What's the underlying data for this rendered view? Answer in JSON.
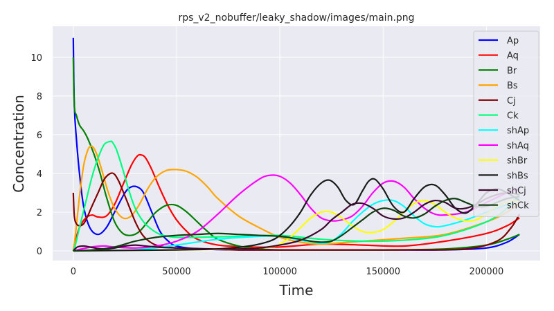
{
  "chart_data": {
    "type": "line",
    "title": "rps_v2_nobuffer/leaky_shadow/images/main.png",
    "xlabel": "Time",
    "ylabel": "Concentration",
    "xlim": [
      -10000,
      226000
    ],
    "ylim": [
      -0.5,
      11.6
    ],
    "x_ticks": [
      0,
      50000,
      100000,
      150000,
      200000
    ],
    "y_ticks": [
      0,
      2,
      4,
      6,
      8,
      10
    ],
    "grid": true,
    "legend": "top-right",
    "series": [
      {
        "name": "Ap",
        "color": "#0000ff",
        "x": [
          0,
          500,
          1500,
          3000,
          5000,
          8000,
          12000,
          16000,
          20000,
          25000,
          28000,
          31000,
          34000,
          38000,
          42000,
          46000,
          50000,
          60000,
          80000,
          100000,
          120000,
          150000,
          180000,
          200000,
          210000,
          216000
        ],
        "y": [
          11.0,
          7.5,
          5.8,
          4.0,
          2.3,
          1.2,
          0.85,
          1.2,
          2.0,
          3.0,
          3.3,
          3.3,
          3.0,
          2.0,
          1.0,
          0.5,
          0.25,
          0.1,
          0.05,
          0.05,
          0.05,
          0.05,
          0.05,
          0.15,
          0.45,
          0.85
        ]
      },
      {
        "name": "Aq",
        "color": "#ff0000",
        "x": [
          0,
          1000,
          3000,
          6000,
          9000,
          12000,
          16000,
          20000,
          24000,
          28000,
          31000,
          33000,
          35000,
          38000,
          42000,
          46000,
          50000,
          55000,
          60000,
          70000,
          85000,
          100000,
          120000,
          140000,
          160000,
          180000,
          200000,
          210000,
          216000
        ],
        "y": [
          0.0,
          0.5,
          1.2,
          1.7,
          1.85,
          1.75,
          1.8,
          2.4,
          3.4,
          4.4,
          4.9,
          4.95,
          4.8,
          4.2,
          3.2,
          2.3,
          1.6,
          1.0,
          0.6,
          0.3,
          0.2,
          0.2,
          0.35,
          0.3,
          0.25,
          0.5,
          0.9,
          1.3,
          1.7
        ]
      },
      {
        "name": "Br",
        "color": "#008000",
        "x": [
          0,
          500,
          1500,
          3000,
          5000,
          7000,
          10000,
          13000,
          16000,
          20000,
          24000,
          28000,
          32000,
          36000,
          40000,
          45000,
          50000,
          55000,
          60000,
          65000,
          70000,
          80000,
          90000,
          100000,
          120000,
          150000,
          180000,
          200000,
          210000,
          216000
        ],
        "y": [
          10.0,
          7.5,
          7.0,
          6.5,
          6.2,
          5.8,
          5.0,
          4.0,
          2.8,
          1.5,
          0.9,
          0.8,
          1.0,
          1.5,
          2.0,
          2.35,
          2.35,
          2.0,
          1.5,
          1.0,
          0.6,
          0.25,
          0.1,
          0.05,
          0.05,
          0.05,
          0.1,
          0.3,
          0.6,
          0.85
        ]
      },
      {
        "name": "Bs",
        "color": "#ffa500",
        "x": [
          0,
          1000,
          3000,
          5000,
          7000,
          8500,
          10000,
          12000,
          14000,
          17000,
          20000,
          24000,
          28000,
          32000,
          36000,
          40000,
          45000,
          50000,
          55000,
          60000,
          65000,
          70000,
          80000,
          90000,
          100000,
          110000,
          120000,
          140000,
          160000,
          180000,
          200000,
          210000,
          216000
        ],
        "y": [
          0.0,
          0.8,
          2.8,
          4.4,
          5.2,
          5.4,
          5.3,
          4.8,
          4.1,
          3.0,
          2.2,
          1.7,
          1.8,
          2.4,
          3.2,
          3.8,
          4.15,
          4.2,
          4.1,
          3.8,
          3.3,
          2.7,
          1.8,
          1.2,
          0.7,
          0.45,
          0.35,
          0.5,
          0.65,
          0.85,
          1.5,
          2.0,
          2.5
        ]
      },
      {
        "name": "Cj",
        "color": "#800000",
        "x": [
          0,
          500,
          1500,
          3000,
          5000,
          7000,
          9000,
          12000,
          15000,
          18000,
          20000,
          22000,
          24000,
          27000,
          30000,
          33000,
          36000,
          40000,
          45000,
          50000,
          60000,
          80000,
          100000,
          130000,
          160000,
          190000,
          205000,
          212000,
          216000
        ],
        "y": [
          3.0,
          1.8,
          1.4,
          1.3,
          1.4,
          1.8,
          2.3,
          3.0,
          3.7,
          4.0,
          3.95,
          3.6,
          3.1,
          2.3,
          1.5,
          0.9,
          0.55,
          0.3,
          0.2,
          0.15,
          0.1,
          0.05,
          0.05,
          0.05,
          0.05,
          0.1,
          0.5,
          1.2,
          1.9
        ]
      },
      {
        "name": "Ck",
        "color": "#00ff7f",
        "x": [
          0,
          1000,
          3000,
          6000,
          9000,
          12000,
          15000,
          18000,
          19000,
          21000,
          24000,
          27000,
          30000,
          34000,
          38000,
          42000,
          46000,
          50000,
          60000,
          80000,
          100000,
          120000,
          140000,
          160000,
          180000,
          200000,
          210000,
          216000
        ],
        "y": [
          0.0,
          0.3,
          1.2,
          2.5,
          3.8,
          4.8,
          5.5,
          5.65,
          5.6,
          5.2,
          4.2,
          3.1,
          2.2,
          1.5,
          1.1,
          0.85,
          0.75,
          0.7,
          0.7,
          0.75,
          0.8,
          0.6,
          0.5,
          0.55,
          0.8,
          1.5,
          2.2,
          2.9
        ]
      },
      {
        "name": "shAp",
        "color": "#00ffff",
        "x": [
          0,
          10000,
          30000,
          50000,
          70000,
          90000,
          100000,
          110000,
          120000,
          125000,
          130000,
          135000,
          140000,
          145000,
          150000,
          155000,
          160000,
          165000,
          170000,
          175000,
          180000,
          190000,
          200000,
          210000,
          216000
        ],
        "y": [
          0.0,
          0.02,
          0.05,
          0.3,
          0.6,
          0.75,
          0.75,
          0.55,
          0.4,
          0.5,
          0.9,
          1.5,
          2.0,
          2.4,
          2.6,
          2.6,
          2.3,
          1.8,
          1.4,
          1.25,
          1.3,
          1.6,
          2.0,
          2.4,
          2.7
        ]
      },
      {
        "name": "shAq",
        "color": "#ff00ff",
        "x": [
          0,
          5000,
          10000,
          15000,
          20000,
          30000,
          40000,
          50000,
          60000,
          70000,
          80000,
          90000,
          95000,
          100000,
          105000,
          110000,
          115000,
          120000,
          125000,
          130000,
          135000,
          140000,
          145000,
          150000,
          155000,
          160000,
          165000,
          170000,
          175000,
          180000,
          190000,
          200000,
          210000,
          216000
        ],
        "y": [
          0.0,
          0.12,
          0.22,
          0.25,
          0.2,
          0.15,
          0.25,
          0.5,
          1.0,
          1.9,
          2.9,
          3.7,
          3.9,
          3.85,
          3.5,
          2.9,
          2.2,
          1.7,
          1.55,
          1.6,
          1.8,
          2.3,
          3.0,
          3.5,
          3.6,
          3.3,
          2.7,
          2.2,
          1.9,
          1.85,
          2.0,
          2.5,
          3.0,
          3.2
        ]
      },
      {
        "name": "shBr",
        "color": "#ffff00",
        "x": [
          0,
          20000,
          50000,
          80000,
          95000,
          100000,
          105000,
          110000,
          115000,
          120000,
          125000,
          130000,
          135000,
          140000,
          145000,
          150000,
          155000,
          160000,
          165000,
          170000,
          175000,
          180000,
          185000,
          190000,
          195000,
          200000,
          205000,
          210000,
          216000
        ],
        "y": [
          0.0,
          0.02,
          0.05,
          0.1,
          0.2,
          0.35,
          0.7,
          1.2,
          1.7,
          2.0,
          2.0,
          1.7,
          1.3,
          1.0,
          0.95,
          1.1,
          1.5,
          2.0,
          2.45,
          2.6,
          2.4,
          2.0,
          1.7,
          1.55,
          1.6,
          1.9,
          2.3,
          2.5,
          2.6
        ]
      },
      {
        "name": "shBs",
        "color": "#1a1a1a",
        "x": [
          0,
          20000,
          50000,
          70000,
          85000,
          95000,
          100000,
          105000,
          110000,
          115000,
          120000,
          124000,
          128000,
          132000,
          136000,
          140000,
          143000,
          146000,
          150000,
          155000,
          160000,
          165000,
          170000,
          175000,
          180000,
          185000,
          190000,
          195000,
          200000,
          205000,
          210000,
          216000
        ],
        "y": [
          0.0,
          0.02,
          0.05,
          0.1,
          0.25,
          0.5,
          0.8,
          1.3,
          2.0,
          2.9,
          3.5,
          3.65,
          3.3,
          2.6,
          2.4,
          3.1,
          3.6,
          3.7,
          3.2,
          2.3,
          2.0,
          2.7,
          3.3,
          3.4,
          2.9,
          2.2,
          1.95,
          2.4,
          3.0,
          3.2,
          3.0,
          2.6
        ]
      },
      {
        "name": "shCj",
        "color": "#3d0a30",
        "x": [
          0,
          2000,
          5000,
          8000,
          12000,
          16000,
          20000,
          25000,
          30000,
          35000,
          40000,
          50000,
          60000,
          70000,
          80000,
          90000,
          100000,
          110000,
          120000,
          125000,
          130000,
          135000,
          140000,
          145000,
          150000,
          155000,
          160000,
          165000,
          170000,
          175000,
          180000,
          185000,
          190000,
          195000,
          200000,
          205000,
          210000,
          216000
        ],
        "y": [
          0.0,
          0.2,
          0.25,
          0.2,
          0.12,
          0.1,
          0.15,
          0.25,
          0.3,
          0.25,
          0.2,
          0.15,
          0.12,
          0.1,
          0.1,
          0.15,
          0.3,
          0.55,
          1.1,
          1.6,
          2.0,
          2.4,
          2.45,
          2.2,
          1.8,
          1.65,
          1.7,
          2.0,
          2.4,
          2.6,
          2.5,
          2.2,
          2.2,
          2.4,
          2.7,
          2.9,
          3.0,
          2.9
        ]
      },
      {
        "name": "shCk",
        "color": "#0f3d0f",
        "x": [
          0,
          10000,
          20000,
          30000,
          40000,
          50000,
          60000,
          70000,
          80000,
          90000,
          100000,
          110000,
          115000,
          120000,
          125000,
          130000,
          135000,
          140000,
          145000,
          150000,
          155000,
          160000,
          165000,
          170000,
          175000,
          180000,
          185000,
          190000,
          195000,
          200000,
          205000,
          210000,
          216000
        ],
        "y": [
          0.0,
          0.05,
          0.2,
          0.5,
          0.7,
          0.8,
          0.85,
          0.9,
          0.85,
          0.8,
          0.75,
          0.6,
          0.5,
          0.45,
          0.5,
          0.8,
          1.2,
          1.6,
          2.0,
          2.2,
          2.1,
          1.8,
          1.7,
          1.9,
          2.3,
          2.6,
          2.7,
          2.5,
          2.3,
          2.3,
          2.5,
          2.7,
          2.8
        ]
      }
    ]
  }
}
